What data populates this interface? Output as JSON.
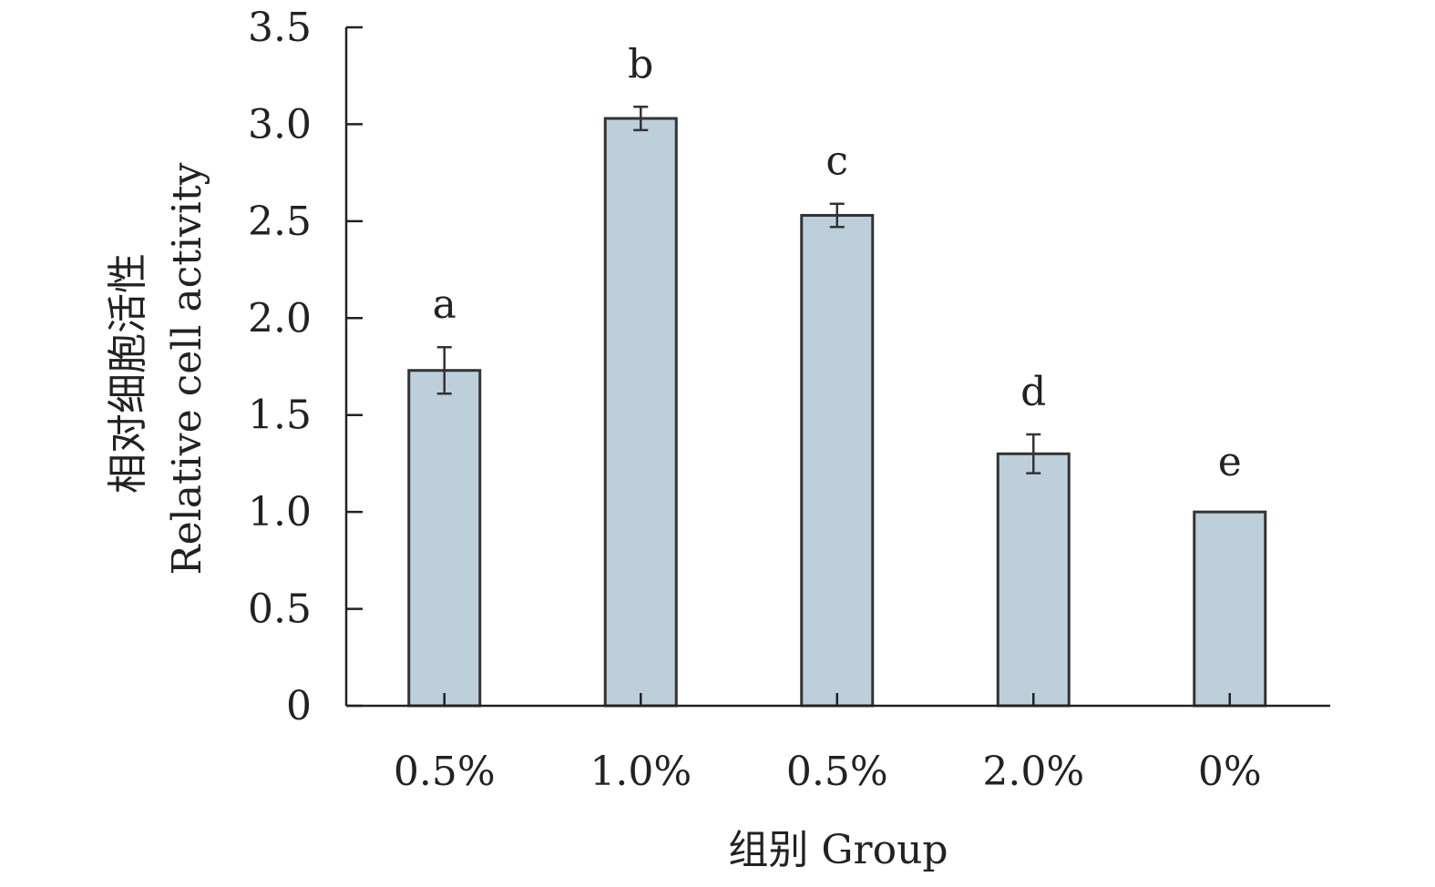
{
  "chart_data": {
    "type": "bar",
    "categories": [
      "0.5%",
      "1.0%",
      "0.5%",
      "2.0%",
      "0%"
    ],
    "values": [
      1.73,
      3.03,
      2.53,
      1.3,
      1.0
    ],
    "errors": [
      0.12,
      0.06,
      0.06,
      0.1,
      0
    ],
    "significance_letters": [
      "a",
      "b",
      "c",
      "d",
      "e"
    ],
    "xlabel": "组别 Group",
    "ylabel_line1": "相对细胞活性",
    "ylabel_line2": "Relative cell activity",
    "ylim": [
      0,
      3.5
    ],
    "yticks": [
      "0",
      "0.5",
      "1.0",
      "1.5",
      "2.0",
      "2.5",
      "3.0",
      "3.5"
    ],
    "grid": false,
    "colors": {
      "bar_fill": "#bccfdb",
      "bar_stroke": "#333333",
      "axis": "#222222"
    }
  }
}
